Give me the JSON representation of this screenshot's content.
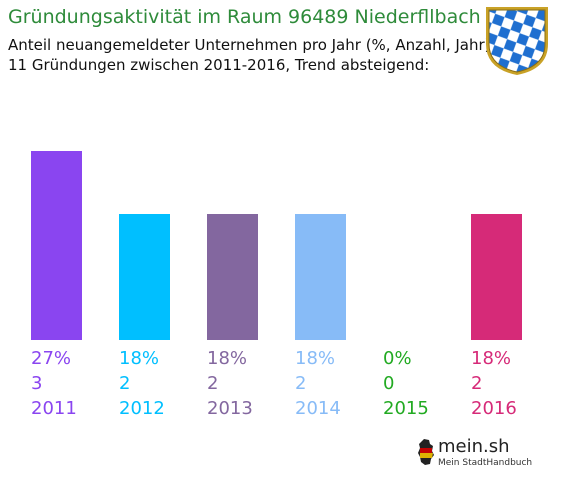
{
  "header": {
    "title": "Gründungsaktivität im Raum 96489 Niederfllbach",
    "subtitle_line1": "Anteil neuangemeldeter Unternehmen pro Jahr (%, Anzahl, Jahr)",
    "subtitle_line2": "11 Gründungen zwischen 2011-2016, Trend absteigend:"
  },
  "logo": {
    "crest_icon": "bavarian-crest-icon",
    "crest_colors": {
      "blue": "#1f6fd0",
      "white": "#ffffff",
      "gold": "#c9a227"
    }
  },
  "brand": {
    "name": "mein.sh",
    "tagline": "Mein StadtHandbuch",
    "icon": "germany-map-icon"
  },
  "chart_data": {
    "type": "bar",
    "categories": [
      "2011",
      "2012",
      "2013",
      "2014",
      "2015",
      "2016"
    ],
    "values": [
      27,
      18,
      18,
      18,
      0,
      18
    ],
    "percent_labels": [
      "27%",
      "18%",
      "18%",
      "18%",
      "0%",
      "18%"
    ],
    "count_labels": [
      "3",
      "2",
      "2",
      "2",
      "0",
      "2"
    ],
    "colors": [
      "#8a45f0",
      "#00bfff",
      "#83679f",
      "#87bbf7",
      "#22aa22",
      "#d62a78"
    ],
    "ylim": [
      0,
      27
    ],
    "grid": false,
    "legend": "none"
  }
}
